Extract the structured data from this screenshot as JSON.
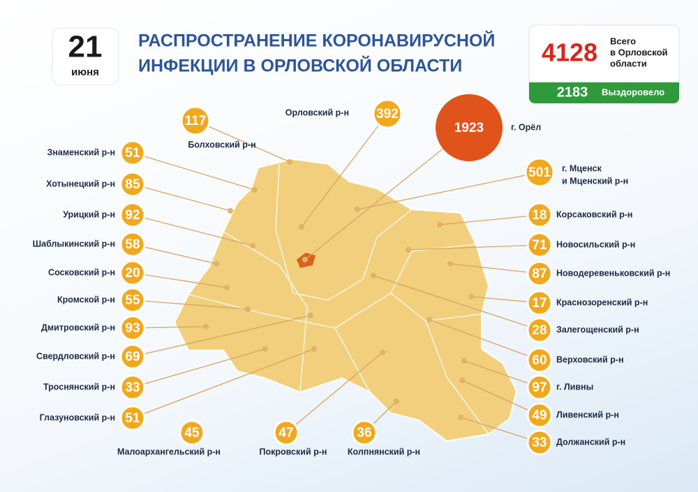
{
  "header": {
    "day": "21",
    "month": "июня",
    "title_lines": [
      "РАСПРОСТРАНЕНИЕ КОРОНАВИРУСНОЙ",
      "ИНФЕКЦИИ В ОРЛОВСКОЙ ОБЛАСТИ"
    ]
  },
  "totals": {
    "total": 4128,
    "total_label_lines": [
      "Всего",
      "в Орловской",
      "области"
    ],
    "recovered": 2183,
    "recovered_label": "Выздоровело"
  },
  "districts": [
    {
      "name_lines": [
        "Знаменский р-н"
      ],
      "value": 51
    },
    {
      "name_lines": [
        "Хотынецкий р-н"
      ],
      "value": 85
    },
    {
      "name_lines": [
        "Урицкий р-н"
      ],
      "value": 92
    },
    {
      "name_lines": [
        "Шаблыкинский р-н"
      ],
      "value": 58
    },
    {
      "name_lines": [
        "Сосковский р-н"
      ],
      "value": 20
    },
    {
      "name_lines": [
        "Кромской р-н"
      ],
      "value": 55
    },
    {
      "name_lines": [
        "Дмитровский р-н"
      ],
      "value": 93
    },
    {
      "name_lines": [
        "Свердловский р-н"
      ],
      "value": 69
    },
    {
      "name_lines": [
        "Троснянский р-н"
      ],
      "value": 33
    },
    {
      "name_lines": [
        "Глазуновский р-н"
      ],
      "value": 51
    },
    {
      "name_lines": [
        "Малоархангельский р-н"
      ],
      "value": 45
    },
    {
      "name_lines": [
        "Покровский р-н"
      ],
      "value": 47
    },
    {
      "name_lines": [
        "Колпнянский р-н"
      ],
      "value": 36
    },
    {
      "name_lines": [
        "Корсаковский р-н"
      ],
      "value": 18
    },
    {
      "name_lines": [
        "Новосильский р-н"
      ],
      "value": 71
    },
    {
      "name_lines": [
        "Новодеревеньковский р-н"
      ],
      "value": 87
    },
    {
      "name_lines": [
        "Краснозоренский р-н"
      ],
      "value": 17
    },
    {
      "name_lines": [
        "Залегощенский р-н"
      ],
      "value": 28
    },
    {
      "name_lines": [
        "Верховский р-н"
      ],
      "value": 60
    },
    {
      "name_lines": [
        "г. Ливны"
      ],
      "value": 97
    },
    {
      "name_lines": [
        "Ливенский р-н"
      ],
      "value": 49
    },
    {
      "name_lines": [
        "Должанский р-н"
      ],
      "value": 33
    },
    {
      "name_lines": [
        "Болховский р-н"
      ],
      "value": 117
    },
    {
      "name_lines": [
        "Орловский р-н"
      ],
      "value": 392
    },
    {
      "name_lines": [
        "г. Орёл"
      ],
      "value": 1923
    },
    {
      "name_lines": [
        "г. Мценск",
        "и Мценский р-н"
      ],
      "value": 501
    }
  ]
}
